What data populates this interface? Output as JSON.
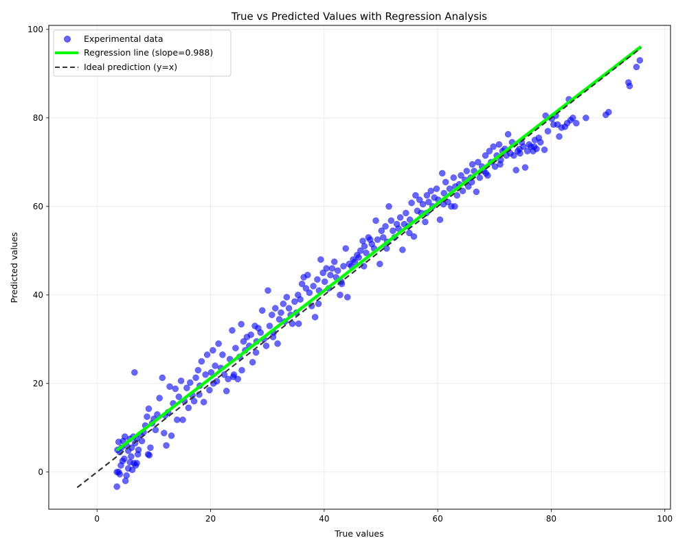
{
  "chart_data": {
    "type": "scatter",
    "title": "True vs Predicted Values with Regression Analysis",
    "xlabel": "True values",
    "ylabel": "Predicted values",
    "xlim": [
      -8.5,
      101
    ],
    "ylim": [
      -8.4,
      100.9
    ],
    "xticks": [
      0,
      20,
      40,
      60,
      80,
      100
    ],
    "yticks": [
      0,
      20,
      40,
      60,
      80,
      100
    ],
    "grid": true,
    "legend_position": "upper left",
    "legend": [
      {
        "label": "Experimental data",
        "type": "marker",
        "color": "#0000ff",
        "alpha": 0.6
      },
      {
        "label": "Regression line (slope=0.988)",
        "type": "line",
        "color": "#00ff00",
        "width": 4
      },
      {
        "label": "Ideal prediction (y=x)",
        "type": "dashed-line",
        "color": "#333333",
        "width": 2
      }
    ],
    "series": [
      {
        "name": "Regression line (slope=0.988)",
        "type": "line",
        "slope": 0.988,
        "x": [
          3.5,
          95.8
        ],
        "y": [
          4.9,
          96.1
        ],
        "color": "#00ff00"
      },
      {
        "name": "Ideal prediction (y=x)",
        "type": "line",
        "style": "dashed",
        "x": [
          -3.5,
          95.8
        ],
        "y": [
          -3.5,
          95.8
        ],
        "color": "#333333"
      },
      {
        "name": "Experimental data",
        "type": "scatter",
        "color": "#0000ff",
        "points": [
          [
            3.5,
            -3.3
          ],
          [
            3.5,
            0.0
          ],
          [
            3.8,
            0.0
          ],
          [
            4.0,
            -0.5
          ],
          [
            4.2,
            1.5
          ],
          [
            4.5,
            2.5
          ],
          [
            4.8,
            3.0
          ],
          [
            5.0,
            -2.0
          ],
          [
            5.2,
            -0.8
          ],
          [
            5.5,
            0.8
          ],
          [
            5.8,
            2.2
          ],
          [
            6.0,
            3.5
          ],
          [
            6.2,
            0.5
          ],
          [
            6.5,
            2.0
          ],
          [
            6.8,
            1.5
          ],
          [
            7.0,
            2.0
          ],
          [
            7.2,
            4.0
          ],
          [
            3.6,
            5.0
          ],
          [
            3.8,
            6.8
          ],
          [
            4.0,
            4.5
          ],
          [
            4.3,
            5.5
          ],
          [
            4.6,
            7.0
          ],
          [
            4.9,
            8.0
          ],
          [
            5.2,
            6.0
          ],
          [
            5.5,
            4.8
          ],
          [
            5.8,
            7.5
          ],
          [
            6.1,
            5.5
          ],
          [
            6.4,
            8.0
          ],
          [
            6.7,
            6.5
          ],
          [
            7.0,
            7.5
          ],
          [
            7.3,
            5.0
          ],
          [
            7.6,
            8.5
          ],
          [
            7.9,
            7.0
          ],
          [
            8.2,
            9.0
          ],
          [
            8.5,
            10.5
          ],
          [
            8.8,
            12.5
          ],
          [
            9.1,
            14.3
          ],
          [
            9.4,
            5.5
          ],
          [
            9.0,
            4.0
          ],
          [
            9.7,
            11.0
          ],
          [
            10.0,
            12.0
          ],
          [
            10.3,
            9.5
          ],
          [
            10.6,
            13.0
          ],
          [
            11.0,
            16.7
          ],
          [
            11.5,
            21.3
          ],
          [
            11.8,
            8.8
          ],
          [
            12.2,
            6.0
          ],
          [
            12.5,
            13.5
          ],
          [
            12.8,
            19.3
          ],
          [
            13.1,
            8.2
          ],
          [
            13.4,
            15.5
          ],
          [
            13.8,
            18.8
          ],
          [
            14.1,
            11.8
          ],
          [
            14.4,
            17.0
          ],
          [
            14.8,
            20.6
          ],
          [
            15.1,
            11.8
          ],
          [
            15.4,
            16.0
          ],
          [
            15.8,
            19.0
          ],
          [
            16.1,
            14.5
          ],
          [
            16.4,
            20.2
          ],
          [
            16.8,
            17.3
          ],
          [
            17.1,
            16.0
          ],
          [
            17.4,
            21.3
          ],
          [
            17.8,
            23.0
          ],
          [
            18.1,
            19.5
          ],
          [
            18.4,
            25.0
          ],
          [
            18.8,
            15.8
          ],
          [
            19.1,
            22.0
          ],
          [
            19.4,
            26.5
          ],
          [
            19.8,
            18.5
          ],
          [
            20.1,
            22.5
          ],
          [
            20.4,
            27.5
          ],
          [
            20.8,
            24.0
          ],
          [
            21.1,
            20.5
          ],
          [
            21.4,
            29.0
          ],
          [
            21.8,
            23.5
          ],
          [
            22.1,
            26.5
          ],
          [
            22.4,
            22.0
          ],
          [
            22.8,
            18.3
          ],
          [
            23.1,
            21.0
          ],
          [
            23.4,
            25.5
          ],
          [
            23.8,
            32.0
          ],
          [
            24.1,
            22.0
          ],
          [
            24.4,
            28.0
          ],
          [
            24.8,
            21.0
          ],
          [
            25.1,
            26.0
          ],
          [
            25.4,
            33.4
          ],
          [
            25.8,
            29.5
          ],
          [
            26.1,
            27.5
          ],
          [
            26.4,
            30.5
          ],
          [
            26.8,
            28.5
          ],
          [
            27.1,
            31.0
          ],
          [
            27.4,
            24.8
          ],
          [
            27.8,
            33.0
          ],
          [
            28.1,
            29.5
          ],
          [
            28.4,
            32.5
          ],
          [
            28.8,
            31.5
          ],
          [
            29.1,
            36.5
          ],
          [
            29.4,
            30.0
          ],
          [
            29.8,
            28.5
          ],
          [
            30.1,
            41.0
          ],
          [
            30.4,
            33.0
          ],
          [
            30.8,
            35.5
          ],
          [
            31.1,
            31.5
          ],
          [
            31.4,
            37.0
          ],
          [
            31.8,
            29.0
          ],
          [
            32.1,
            34.5
          ],
          [
            32.4,
            36.0
          ],
          [
            32.8,
            38.0
          ],
          [
            33.1,
            34.0
          ],
          [
            33.4,
            39.5
          ],
          [
            33.8,
            37.0
          ],
          [
            34.1,
            35.5
          ],
          [
            34.4,
            33.5
          ],
          [
            34.8,
            38.5
          ],
          [
            35.1,
            36.0
          ],
          [
            35.4,
            40.0
          ],
          [
            35.8,
            39.0
          ],
          [
            36.1,
            42.5
          ],
          [
            36.4,
            44.0
          ],
          [
            36.8,
            41.5
          ],
          [
            37.1,
            44.5
          ],
          [
            37.4,
            40.5
          ],
          [
            37.8,
            37.5
          ],
          [
            38.1,
            42.0
          ],
          [
            38.4,
            35.0
          ],
          [
            38.8,
            43.5
          ],
          [
            39.1,
            41.0
          ],
          [
            39.4,
            48.0
          ],
          [
            39.8,
            45.0
          ],
          [
            40.1,
            43.0
          ],
          [
            40.4,
            46.0
          ],
          [
            40.8,
            41.5
          ],
          [
            41.1,
            44.5
          ],
          [
            41.4,
            46.0
          ],
          [
            41.8,
            47.5
          ],
          [
            42.1,
            44.0
          ],
          [
            42.4,
            45.5
          ],
          [
            42.8,
            40.0
          ],
          [
            43.1,
            42.5
          ],
          [
            43.4,
            46.5
          ],
          [
            43.8,
            50.5
          ],
          [
            44.1,
            39.5
          ],
          [
            44.4,
            47.0
          ],
          [
            44.8,
            46.5
          ],
          [
            45.1,
            48.0
          ],
          [
            45.4,
            47.5
          ],
          [
            45.8,
            49.0
          ],
          [
            46.1,
            48.5
          ],
          [
            46.4,
            50.0
          ],
          [
            46.8,
            52.2
          ],
          [
            47.1,
            51.0
          ],
          [
            47.4,
            49.5
          ],
          [
            47.8,
            53.0
          ],
          [
            48.1,
            52.5
          ],
          [
            48.4,
            51.5
          ],
          [
            48.8,
            50.5
          ],
          [
            49.1,
            56.8
          ],
          [
            49.4,
            52.5
          ],
          [
            49.8,
            47.0
          ],
          [
            50.1,
            54.5
          ],
          [
            50.4,
            53.0
          ],
          [
            50.8,
            55.5
          ],
          [
            51.1,
            52.0
          ],
          [
            51.4,
            60.0
          ],
          [
            51.8,
            56.8
          ],
          [
            52.1,
            54.5
          ],
          [
            52.4,
            53.0
          ],
          [
            52.8,
            56.0
          ],
          [
            53.1,
            55.0
          ],
          [
            53.4,
            57.5
          ],
          [
            53.8,
            50.2
          ],
          [
            54.1,
            56.0
          ],
          [
            54.4,
            58.5
          ],
          [
            54.8,
            55.5
          ],
          [
            55.1,
            57.0
          ],
          [
            55.4,
            60.8
          ],
          [
            55.8,
            53.2
          ],
          [
            56.1,
            62.5
          ],
          [
            56.4,
            59.0
          ],
          [
            56.8,
            61.5
          ],
          [
            57.1,
            58.5
          ],
          [
            57.4,
            60.5
          ],
          [
            57.8,
            56.5
          ],
          [
            58.1,
            62.5
          ],
          [
            58.4,
            61.0
          ],
          [
            58.8,
            63.5
          ],
          [
            59.1,
            60.0
          ],
          [
            59.4,
            62.0
          ],
          [
            59.8,
            64.0
          ],
          [
            60.1,
            61.5
          ],
          [
            60.4,
            57.0
          ],
          [
            60.8,
            67.5
          ],
          [
            61.1,
            63.0
          ],
          [
            61.4,
            65.5
          ],
          [
            61.8,
            61.0
          ],
          [
            62.1,
            64.0
          ],
          [
            62.4,
            60.0
          ],
          [
            62.8,
            66.5
          ],
          [
            63.1,
            64.5
          ],
          [
            63.4,
            62.5
          ],
          [
            63.8,
            65.0
          ],
          [
            64.1,
            67.0
          ],
          [
            64.4,
            63.5
          ],
          [
            64.8,
            66.0
          ],
          [
            65.1,
            68.0
          ],
          [
            65.4,
            64.5
          ],
          [
            65.8,
            66.5
          ],
          [
            66.1,
            69.5
          ],
          [
            66.4,
            68.0
          ],
          [
            66.8,
            63.3
          ],
          [
            67.1,
            70.0
          ],
          [
            67.4,
            66.5
          ],
          [
            67.8,
            69.0
          ],
          [
            68.1,
            68.0
          ],
          [
            68.4,
            71.5
          ],
          [
            68.8,
            67.0
          ],
          [
            69.1,
            72.5
          ],
          [
            69.4,
            70.0
          ],
          [
            69.8,
            73.5
          ],
          [
            70.1,
            69.0
          ],
          [
            70.4,
            71.5
          ],
          [
            70.8,
            74.0
          ],
          [
            71.1,
            70.5
          ],
          [
            71.4,
            72.5
          ],
          [
            71.8,
            73.0
          ],
          [
            72.1,
            71.5
          ],
          [
            72.4,
            76.3
          ],
          [
            72.8,
            72.0
          ],
          [
            73.1,
            74.5
          ],
          [
            73.4,
            71.5
          ],
          [
            73.8,
            68.2
          ],
          [
            74.1,
            72.5
          ],
          [
            74.4,
            73.0
          ],
          [
            74.8,
            74.5
          ],
          [
            75.1,
            73.5
          ],
          [
            75.4,
            68.8
          ],
          [
            75.8,
            72.5
          ],
          [
            76.1,
            74.0
          ],
          [
            76.4,
            73.5
          ],
          [
            76.8,
            72.5
          ],
          [
            77.1,
            75.0
          ],
          [
            77.4,
            73.0
          ],
          [
            77.8,
            75.5
          ],
          [
            78.1,
            74.5
          ],
          [
            78.8,
            72.8
          ],
          [
            79.4,
            77.0
          ],
          [
            80.1,
            79.8
          ],
          [
            80.4,
            78.5
          ],
          [
            80.8,
            80.5
          ],
          [
            81.1,
            78.5
          ],
          [
            81.4,
            75.8
          ],
          [
            81.8,
            77.8
          ],
          [
            82.4,
            78.0
          ],
          [
            82.8,
            78.8
          ],
          [
            83.1,
            84.2
          ],
          [
            83.4,
            79.5
          ],
          [
            83.8,
            80.0
          ],
          [
            84.4,
            78.8
          ],
          [
            86.1,
            80.0
          ],
          [
            89.6,
            80.7
          ],
          [
            90.1,
            81.3
          ],
          [
            93.6,
            88.0
          ],
          [
            93.8,
            87.2
          ],
          [
            95.0,
            91.5
          ],
          [
            95.6,
            93.0
          ],
          [
            6.6,
            22.5
          ],
          [
            9.2,
            3.8
          ],
          [
            12.0,
            12.8
          ],
          [
            20.5,
            20.0
          ],
          [
            25.5,
            23.0
          ],
          [
            28.0,
            27.0
          ],
          [
            31.0,
            30.5
          ],
          [
            35.5,
            33.5
          ],
          [
            39.0,
            38.0
          ],
          [
            43.0,
            43.0
          ],
          [
            47.0,
            46.5
          ],
          [
            51.0,
            50.5
          ],
          [
            55.0,
            54.0
          ],
          [
            58.0,
            58.5
          ],
          [
            61.0,
            60.5
          ],
          [
            63.0,
            60.0
          ],
          [
            66.0,
            65.5
          ],
          [
            68.5,
            67.5
          ],
          [
            71.0,
            69.5
          ],
          [
            74.5,
            72.0
          ],
          [
            77.0,
            73.5
          ],
          [
            79.0,
            80.5
          ],
          [
            24.0,
            21.5
          ],
          [
            18.0,
            17.5
          ]
        ]
      }
    ]
  }
}
